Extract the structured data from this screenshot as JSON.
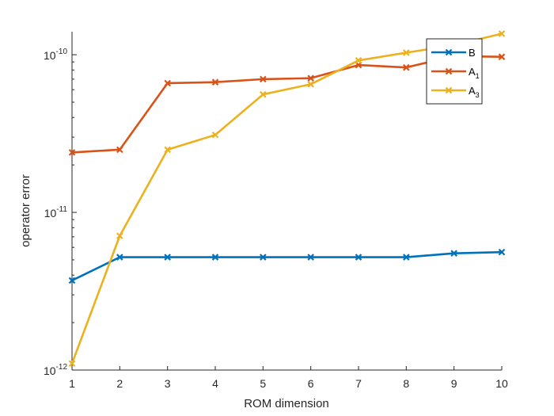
{
  "chart_data": {
    "type": "line",
    "title": "",
    "xlabel": "ROM dimension",
    "ylabel": "operator error",
    "yscale": "log",
    "xlim": [
      1,
      10
    ],
    "ylim": [
      1e-12,
      1.4e-10
    ],
    "grid": false,
    "legend_position": "top-right",
    "x": [
      1,
      2,
      3,
      4,
      5,
      6,
      7,
      8,
      9,
      10
    ],
    "x_tick_labels": [
      "1",
      "2",
      "3",
      "4",
      "5",
      "6",
      "7",
      "8",
      "9",
      "10"
    ],
    "y_ticks": [
      {
        "value": 1e-12,
        "base": "10",
        "exp": "-12"
      },
      {
        "value": 1e-11,
        "base": "10",
        "exp": "-11"
      },
      {
        "value": 1e-10,
        "base": "10",
        "exp": "-10"
      }
    ],
    "series": [
      {
        "name": "B",
        "legend_main": "B",
        "legend_sub": "",
        "color": "#0072BD",
        "values": [
          3.7e-12,
          5.2e-12,
          5.2e-12,
          5.2e-12,
          5.2e-12,
          5.2e-12,
          5.2e-12,
          5.2e-12,
          5.5e-12,
          5.6e-12
        ]
      },
      {
        "name": "A1",
        "legend_main": "A",
        "legend_sub": "1",
        "color": "#D95319",
        "values": [
          2.4e-11,
          2.5e-11,
          6.6e-11,
          6.7e-11,
          7e-11,
          7.1e-11,
          8.6e-11,
          8.3e-11,
          9.8e-11,
          9.7e-11
        ]
      },
      {
        "name": "A3",
        "legend_main": "A",
        "legend_sub": "3",
        "color": "#EDB120",
        "values": [
          1.1e-12,
          7.1e-12,
          2.5e-11,
          3.1e-11,
          5.6e-11,
          6.5e-11,
          9.2e-11,
          1.03e-10,
          1.15e-10,
          1.36e-10
        ]
      }
    ]
  }
}
